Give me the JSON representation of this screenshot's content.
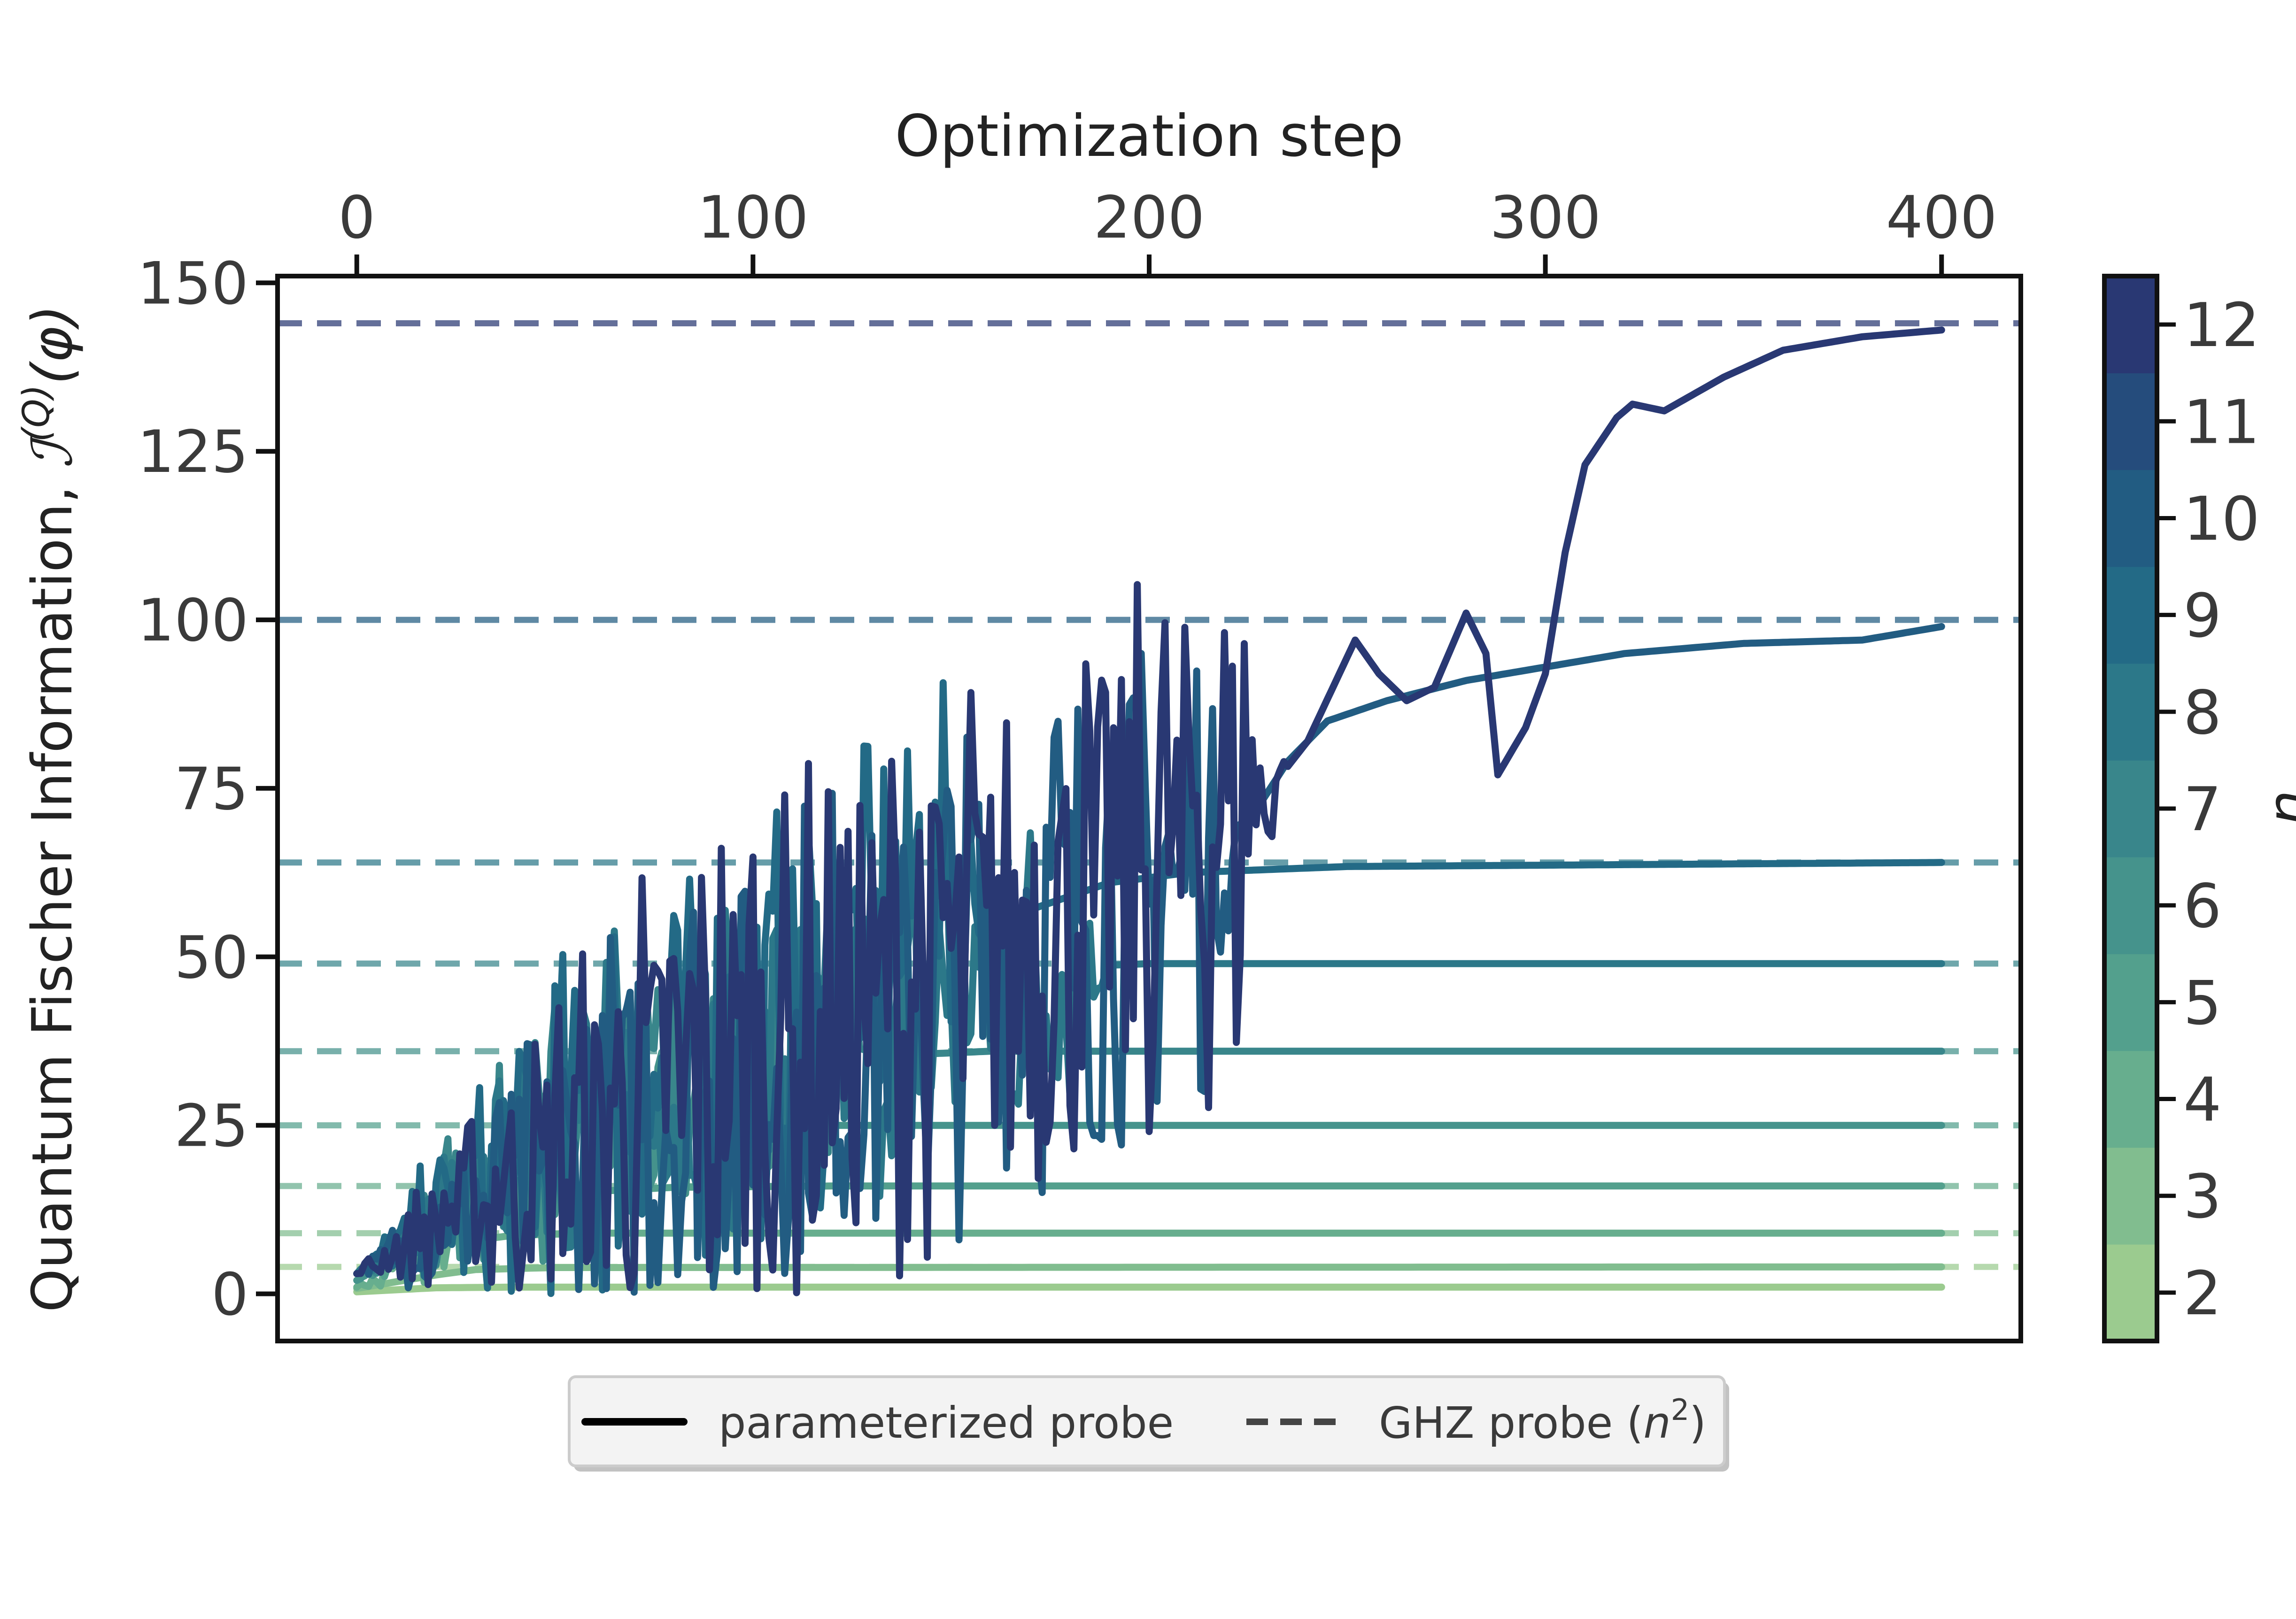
{
  "chart_data": {
    "type": "line",
    "xlabel": "Optimization step",
    "ylabel": "Quantum Fischer Information, ",
    "ylabel_math": "ℐ",
    "ylabel_sup": "(Q)",
    "ylabel_arg": "(φ)",
    "xlim": [
      -20,
      420
    ],
    "ylim": [
      -7,
      151
    ],
    "xticks": [
      0,
      100,
      200,
      300,
      400
    ],
    "yticks": [
      0,
      25,
      50,
      75,
      100,
      125,
      150
    ],
    "grid": false,
    "legend_position": "bottom-center-outside",
    "legend": [
      {
        "label": "parameterized probe",
        "style": "solid",
        "color": "#000000"
      },
      {
        "label": "GHZ probe (",
        "label_math": "n",
        "label_sup": "2",
        "label_close": ")",
        "style": "dashed",
        "color": "#444444"
      }
    ],
    "colorbar": {
      "min": 1.5,
      "max": 12.5,
      "ticks": [
        2,
        3,
        4,
        5,
        6,
        7,
        8,
        9,
        10,
        11,
        12
      ],
      "label_partial": "n",
      "levels": [
        {
          "n": 2,
          "color": "#9bcb8f"
        },
        {
          "n": 3,
          "color": "#81bd8f"
        },
        {
          "n": 4,
          "color": "#67ae8e"
        },
        {
          "n": 5,
          "color": "#53a08d"
        },
        {
          "n": 6,
          "color": "#45938c"
        },
        {
          "n": 7,
          "color": "#39868b"
        },
        {
          "n": 8,
          "color": "#2c7889"
        },
        {
          "n": 9,
          "color": "#236a86"
        },
        {
          "n": 10,
          "color": "#225c82"
        },
        {
          "n": 11,
          "color": "#254c7c"
        },
        {
          "n": 12,
          "color": "#293873"
        }
      ]
    },
    "ghz_series": [
      {
        "n": 2,
        "value": 4
      },
      {
        "n": 3,
        "value": 9
      },
      {
        "n": 4,
        "value": 16
      },
      {
        "n": 5,
        "value": 25
      },
      {
        "n": 6,
        "value": 36
      },
      {
        "n": 7,
        "value": 49
      },
      {
        "n": 8,
        "value": 64
      },
      {
        "n": 10,
        "value": 100
      },
      {
        "n": 12,
        "value": 144
      }
    ],
    "series": [
      {
        "n": 2,
        "color": "#9bcb8f",
        "smooth": [
          [
            0,
            0.3
          ],
          [
            10,
            0.6
          ],
          [
            20,
            0.9
          ],
          [
            40,
            1
          ],
          [
            400,
            1
          ]
        ]
      },
      {
        "n": 3,
        "color": "#81bd8f",
        "smooth": [
          [
            0,
            0.8
          ],
          [
            10,
            1.8
          ],
          [
            20,
            2.8
          ],
          [
            30,
            3.6
          ],
          [
            50,
            3.9
          ],
          [
            400,
            4
          ]
        ]
      },
      {
        "n": 4,
        "color": "#67ae8e",
        "noisy_until": 35,
        "noise_amp": 3,
        "smooth": [
          [
            0,
            1
          ],
          [
            10,
            3
          ],
          [
            20,
            6
          ],
          [
            30,
            8
          ],
          [
            40,
            8.7
          ],
          [
            60,
            9
          ],
          [
            400,
            9
          ]
        ]
      },
      {
        "n": 5,
        "color": "#53a08d",
        "noisy_until": 55,
        "noise_amp": 5,
        "smooth": [
          [
            0,
            2
          ],
          [
            10,
            6
          ],
          [
            20,
            10
          ],
          [
            30,
            13
          ],
          [
            40,
            14.5
          ],
          [
            60,
            15.2
          ],
          [
            80,
            15.8
          ],
          [
            120,
            16
          ],
          [
            400,
            16
          ]
        ]
      },
      {
        "n": 6,
        "color": "#45938c",
        "noisy_until": 120,
        "noise_amp": 8,
        "smooth": [
          [
            0,
            2
          ],
          [
            20,
            10
          ],
          [
            40,
            17
          ],
          [
            50,
            18
          ],
          [
            60,
            22
          ],
          [
            70,
            24
          ],
          [
            80,
            24.5
          ],
          [
            100,
            25
          ],
          [
            180,
            25
          ],
          [
            400,
            25
          ]
        ]
      },
      {
        "n": 7,
        "color": "#39868b",
        "noisy_until": 130,
        "noise_amp": 12,
        "smooth": [
          [
            0,
            3
          ],
          [
            20,
            12
          ],
          [
            40,
            20
          ],
          [
            60,
            28
          ],
          [
            70,
            31
          ],
          [
            80,
            33
          ],
          [
            100,
            34
          ],
          [
            120,
            35
          ],
          [
            160,
            36
          ],
          [
            400,
            36
          ]
        ]
      },
      {
        "n": 8,
        "color": "#2c7889",
        "noisy_until": 190,
        "noise_amp": 16,
        "smooth": [
          [
            0,
            3
          ],
          [
            20,
            12
          ],
          [
            40,
            20
          ],
          [
            60,
            28
          ],
          [
            80,
            33
          ],
          [
            100,
            35
          ],
          [
            120,
            37
          ],
          [
            140,
            38
          ],
          [
            150,
            43
          ],
          [
            160,
            47
          ],
          [
            180,
            48.5
          ],
          [
            200,
            49
          ],
          [
            400,
            49
          ]
        ]
      },
      {
        "n": 9,
        "color": "#236a86",
        "noisy_until": 160,
        "noise_amp": 20,
        "smooth": [
          [
            0,
            3
          ],
          [
            30,
            15
          ],
          [
            60,
            27
          ],
          [
            90,
            35
          ],
          [
            110,
            42
          ],
          [
            120,
            48
          ],
          [
            130,
            53
          ],
          [
            140,
            57
          ],
          [
            160,
            57.5
          ],
          [
            170,
            57
          ],
          [
            190,
            61
          ],
          [
            210,
            62.5
          ],
          [
            250,
            63.4
          ],
          [
            400,
            64
          ]
        ]
      },
      {
        "n": 10,
        "color": "#225c82",
        "noisy_until": 225,
        "noise_amp": 24,
        "smooth": [
          [
            0,
            3
          ],
          [
            30,
            13
          ],
          [
            60,
            22
          ],
          [
            90,
            30
          ],
          [
            120,
            38
          ],
          [
            150,
            48
          ],
          [
            180,
            56
          ],
          [
            200,
            60
          ],
          [
            215,
            64
          ],
          [
            225,
            70
          ],
          [
            235,
            79
          ],
          [
            245,
            85
          ],
          [
            260,
            88
          ],
          [
            280,
            91
          ],
          [
            300,
            93
          ],
          [
            320,
            95
          ],
          [
            350,
            96.5
          ],
          [
            380,
            97
          ],
          [
            400,
            99
          ]
        ]
      },
      {
        "n": 12,
        "color": "#293873",
        "noisy_until": 235,
        "noise_amp": 26,
        "smooth": [
          [
            0,
            3
          ],
          [
            30,
            14
          ],
          [
            60,
            24
          ],
          [
            90,
            33
          ],
          [
            120,
            40
          ],
          [
            150,
            48
          ],
          [
            180,
            57
          ],
          [
            200,
            64
          ],
          [
            220,
            71
          ],
          [
            232,
            76
          ],
          [
            240,
            82
          ],
          [
            248,
            92
          ],
          [
            252,
            97
          ],
          [
            258,
            92
          ],
          [
            265,
            88
          ],
          [
            272,
            90
          ],
          [
            280,
            101
          ],
          [
            285,
            95
          ],
          [
            288,
            77
          ],
          [
            295,
            84
          ],
          [
            300,
            92
          ],
          [
            305,
            110
          ],
          [
            310,
            123
          ],
          [
            318,
            130
          ],
          [
            322,
            132
          ],
          [
            330,
            131
          ],
          [
            345,
            136
          ],
          [
            360,
            140
          ],
          [
            380,
            142
          ],
          [
            400,
            143
          ]
        ]
      }
    ]
  }
}
